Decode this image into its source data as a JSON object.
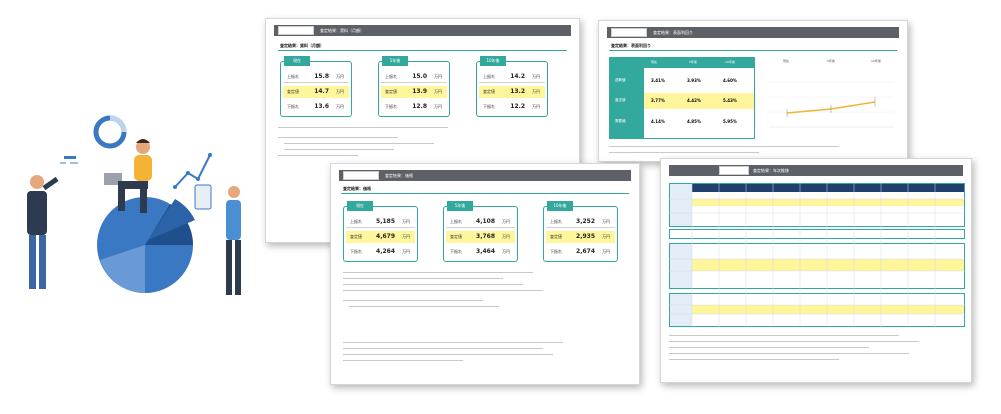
{
  "sheet1": {
    "header": "査定結果：賃料（月額）",
    "section": "査定結果：賃料（月額）",
    "cards": [
      {
        "tag": "現在",
        "rows": [
          {
            "label": "上振れ",
            "value": "15.8",
            "unit": "万円"
          },
          {
            "label": "査定値",
            "value": "14.7",
            "unit": "万円"
          },
          {
            "label": "下振れ",
            "value": "13.6",
            "unit": "万円"
          }
        ]
      },
      {
        "tag": "5年後",
        "rows": [
          {
            "label": "上振れ",
            "value": "15.0",
            "unit": "万円"
          },
          {
            "label": "査定値",
            "value": "13.9",
            "unit": "万円"
          },
          {
            "label": "下振れ",
            "value": "12.8",
            "unit": "万円"
          }
        ]
      },
      {
        "tag": "10年後",
        "rows": [
          {
            "label": "上振れ",
            "value": "14.2",
            "unit": "万円"
          },
          {
            "label": "査定値",
            "value": "13.2",
            "unit": "万円"
          },
          {
            "label": "下振れ",
            "value": "12.2",
            "unit": "万円"
          }
        ]
      }
    ]
  },
  "sheet2": {
    "header": "査定結果：表面利回り",
    "section": "査定結果：表面利回り",
    "columns": [
      "",
      "現在",
      "5年後",
      "10年後"
    ],
    "rows": [
      {
        "label": "過剰値",
        "values": [
          "3.41%",
          "3.93%",
          "4.60%"
        ]
      },
      {
        "label": "査定値",
        "values": [
          "3.77%",
          "4.42%",
          "5.43%"
        ]
      },
      {
        "label": "需要値",
        "values": [
          "4.14%",
          "4.85%",
          "5.95%"
        ]
      }
    ],
    "chart_labels": [
      "現在",
      "5年後",
      "10年後"
    ]
  },
  "sheet3": {
    "header": "査定結果：価格",
    "section": "査定結果：価格",
    "cards": [
      {
        "tag": "現在",
        "rows": [
          {
            "label": "上振れ",
            "value": "5,185",
            "unit": "万円"
          },
          {
            "label": "査定値",
            "value": "4,679",
            "unit": "万円"
          },
          {
            "label": "下振れ",
            "value": "4,264",
            "unit": "万円"
          }
        ]
      },
      {
        "tag": "5年後",
        "rows": [
          {
            "label": "上振れ",
            "value": "4,108",
            "unit": "万円"
          },
          {
            "label": "査定値",
            "value": "3,768",
            "unit": "万円"
          },
          {
            "label": "下振れ",
            "value": "3,464",
            "unit": "万円"
          }
        ]
      },
      {
        "tag": "10年後",
        "rows": [
          {
            "label": "上振れ",
            "value": "3,252",
            "unit": "万円"
          },
          {
            "label": "査定値",
            "value": "2,935",
            "unit": "万円"
          },
          {
            "label": "下振れ",
            "value": "2,674",
            "unit": "万円"
          }
        ]
      }
    ]
  },
  "sheet4": {
    "header": "査定結果：年次推移"
  },
  "colors": {
    "teal": "#33a89c",
    "highlight": "#fff59a",
    "header": "#5c6168",
    "navy": "#1f3f6e",
    "shirt": "#f5b335",
    "pie": "#3b78c3"
  }
}
